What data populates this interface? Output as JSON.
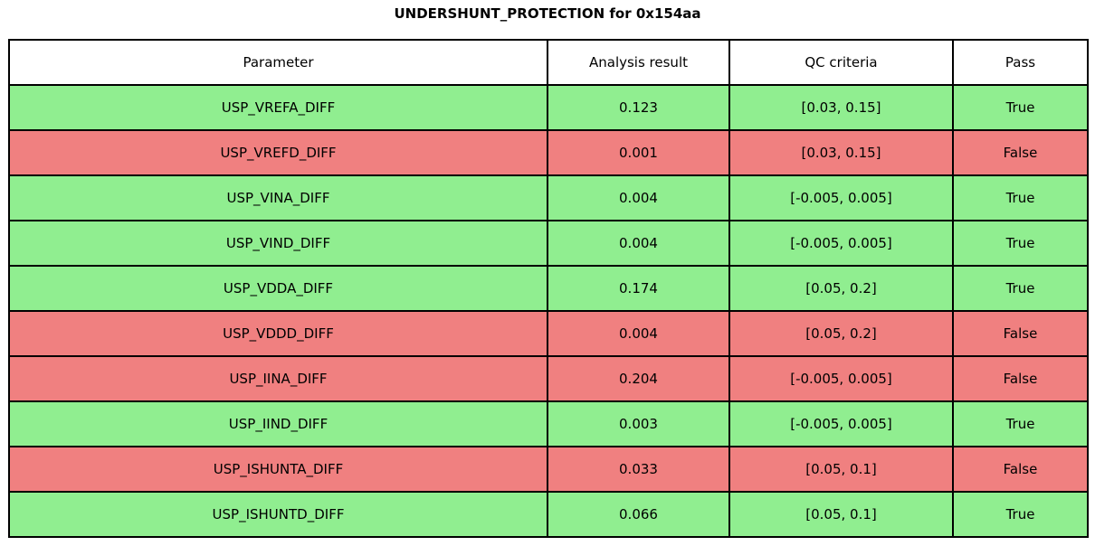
{
  "chart_data": {
    "type": "table",
    "title": "UNDERSHUNT_PROTECTION for 0x154aa",
    "columns": [
      "Parameter",
      "Analysis result",
      "QC criteria",
      "Pass"
    ],
    "rows": [
      {
        "parameter": "USP_VREFA_DIFF",
        "result": "0.123",
        "criteria": "[0.03, 0.15]",
        "pass": "True",
        "status": "pass"
      },
      {
        "parameter": "USP_VREFD_DIFF",
        "result": "0.001",
        "criteria": "[0.03, 0.15]",
        "pass": "False",
        "status": "fail"
      },
      {
        "parameter": "USP_VINA_DIFF",
        "result": "0.004",
        "criteria": "[-0.005, 0.005]",
        "pass": "True",
        "status": "pass"
      },
      {
        "parameter": "USP_VIND_DIFF",
        "result": "0.004",
        "criteria": "[-0.005, 0.005]",
        "pass": "True",
        "status": "pass"
      },
      {
        "parameter": "USP_VDDA_DIFF",
        "result": "0.174",
        "criteria": "[0.05, 0.2]",
        "pass": "True",
        "status": "pass"
      },
      {
        "parameter": "USP_VDDD_DIFF",
        "result": "0.004",
        "criteria": "[0.05, 0.2]",
        "pass": "False",
        "status": "fail"
      },
      {
        "parameter": "USP_IINA_DIFF",
        "result": "0.204",
        "criteria": "[-0.005, 0.005]",
        "pass": "False",
        "status": "fail"
      },
      {
        "parameter": "USP_IIND_DIFF",
        "result": "0.003",
        "criteria": "[-0.005, 0.005]",
        "pass": "True",
        "status": "pass"
      },
      {
        "parameter": "USP_ISHUNTA_DIFF",
        "result": "0.033",
        "criteria": "[0.05, 0.1]",
        "pass": "False",
        "status": "fail"
      },
      {
        "parameter": "USP_ISHUNTD_DIFF",
        "result": "0.066",
        "criteria": "[0.05, 0.1]",
        "pass": "True",
        "status": "pass"
      }
    ],
    "colors": {
      "pass_row": "#90EE90",
      "fail_row": "#F08080",
      "header_bg": "#FFFFFF",
      "border": "#000000",
      "text": "#000000"
    },
    "layout": {
      "legend": "none",
      "grid": "cell-borders"
    }
  }
}
